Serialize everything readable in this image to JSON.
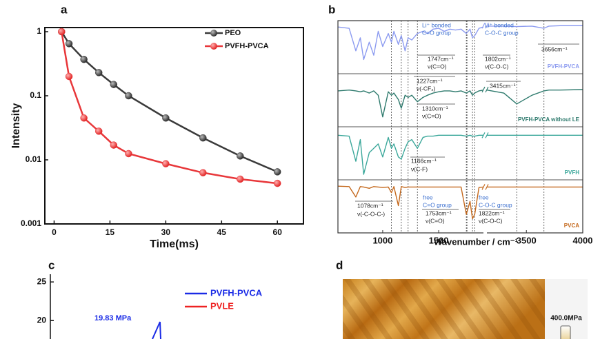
{
  "chart_data": [
    {
      "label": "a",
      "type": "line",
      "xlabel": "Time(ms)",
      "ylabel": "Intensity",
      "x": [
        2,
        4,
        8,
        12,
        16,
        20,
        30,
        40,
        50,
        60
      ],
      "series": [
        {
          "name": "PEO",
          "color": "#3a3a3a",
          "values": [
            1,
            0.65,
            0.37,
            0.23,
            0.15,
            0.1,
            0.045,
            0.022,
            0.0115,
            0.0065
          ]
        },
        {
          "name": "PVFH-PVCA",
          "color": "#e8373a",
          "values": [
            1,
            0.2,
            0.045,
            0.028,
            0.017,
            0.0125,
            0.0087,
            0.0063,
            0.005,
            0.0043
          ]
        }
      ],
      "xlim": [
        -2.5,
        67
      ],
      "xticks": [
        0,
        15,
        30,
        45,
        60
      ],
      "ylim": [
        0.001,
        1.16
      ],
      "yticks": [
        0.001,
        0.01,
        0.1,
        1
      ],
      "log_y": true,
      "legend": "upper right"
    },
    {
      "label": "b",
      "type": "spectra",
      "xlabel": "Wavenumber / cm⁻¹",
      "x": [
        600,
        700,
        760,
        800,
        830,
        880,
        920,
        960,
        1000,
        1050,
        1078,
        1100,
        1140,
        1166,
        1200,
        1227,
        1260,
        1310,
        1360,
        1400,
        1450,
        1500,
        1550,
        1600,
        1650,
        1700,
        1747,
        1780,
        1802,
        1822,
        1860,
        1900,
        3150,
        3300,
        3415,
        3550,
        3656,
        3700,
        3800,
        4000
      ],
      "series": [
        {
          "name": "PVFH-PVCA",
          "color": "#8c9bf0",
          "values": [
            95,
            92,
            40,
            70,
            20,
            60,
            30,
            85,
            50,
            80,
            60,
            85,
            55,
            75,
            40,
            70,
            65,
            80,
            85,
            80,
            90,
            92,
            85,
            90,
            88,
            90,
            80,
            90,
            70,
            75,
            92,
            95,
            97,
            97,
            96,
            97,
            92,
            97,
            98,
            98
          ]
        },
        {
          "name": "PVFH-PVCA without LE",
          "color": "#2e7a6d",
          "values": [
            70,
            72,
            70,
            68,
            70,
            65,
            70,
            60,
            10,
            68,
            60,
            65,
            50,
            30,
            60,
            55,
            60,
            45,
            55,
            60,
            65,
            68,
            70,
            70,
            68,
            70,
            65,
            70,
            60,
            65,
            70,
            72,
            72,
            65,
            40,
            60,
            70,
            72,
            72,
            73
          ]
        },
        {
          "name": "PVFH",
          "color": "#3aa79a",
          "values": [
            90,
            88,
            30,
            80,
            0,
            50,
            60,
            70,
            40,
            85,
            60,
            70,
            40,
            35,
            60,
            75,
            80,
            60,
            85,
            88,
            88,
            90,
            90,
            90,
            90,
            90,
            88,
            90,
            88,
            88,
            90,
            90,
            90,
            90,
            90,
            90,
            90,
            90,
            90,
            90
          ]
        },
        {
          "name": "PVCA",
          "color": "#c4681c",
          "values": [
            95,
            94,
            70,
            94,
            93,
            90,
            94,
            93,
            92,
            93,
            80,
            94,
            50,
            94,
            92,
            93,
            93,
            93,
            93,
            93,
            93,
            93,
            93,
            93,
            93,
            93,
            30,
            60,
            20,
            30,
            92,
            93,
            93,
            93,
            93,
            93,
            93,
            93,
            93,
            93
          ]
        }
      ],
      "xlim": [
        600,
        4000
      ],
      "axis_break": [
        1900,
        3150
      ],
      "xticks": [
        1000,
        1500,
        3500,
        4000
      ],
      "ylim": [
        0,
        100
      ],
      "reference_lines": [
        1078,
        1166,
        1227,
        1310,
        1747,
        1753,
        1802,
        1822,
        3415,
        3656
      ],
      "annotations": [
        "Li⁺ bonded",
        "C=O group",
        "1747cm⁻¹",
        "ν(C=O)",
        "Li⁺ bonded",
        "C-O-C group",
        "1802cm⁻¹",
        "ν(C-O-C)",
        "3656cm⁻¹",
        "1227cm⁻¹",
        "ν(-CF₂)",
        "3415cm⁻¹",
        "1310cm⁻¹",
        "ν(C=O)",
        "1166cm⁻¹",
        "ν(C-F)",
        "1078cm⁻¹",
        "ν(-C-O-C-)",
        "free",
        "C=O group",
        "1753cm⁻¹",
        "ν(C=O)",
        "free",
        "C-O-C group",
        "1822cm⁻¹",
        "ν(C-O-C)"
      ]
    },
    {
      "label": "c",
      "type": "line",
      "series": [
        {
          "name": "PVFH-PVCA",
          "color": "#1a2be6",
          "values": [
            17.6,
            19.83,
            17.6
          ]
        },
        {
          "name": "PVLE",
          "color": "#ee2222"
        }
      ],
      "ylim": [
        16,
        26
      ],
      "yticks": [
        20,
        25
      ],
      "annotations": [
        "19.83 MPa"
      ]
    }
  ],
  "panel_d": {
    "label": "d",
    "colorbar_label": "400.0MPa"
  }
}
